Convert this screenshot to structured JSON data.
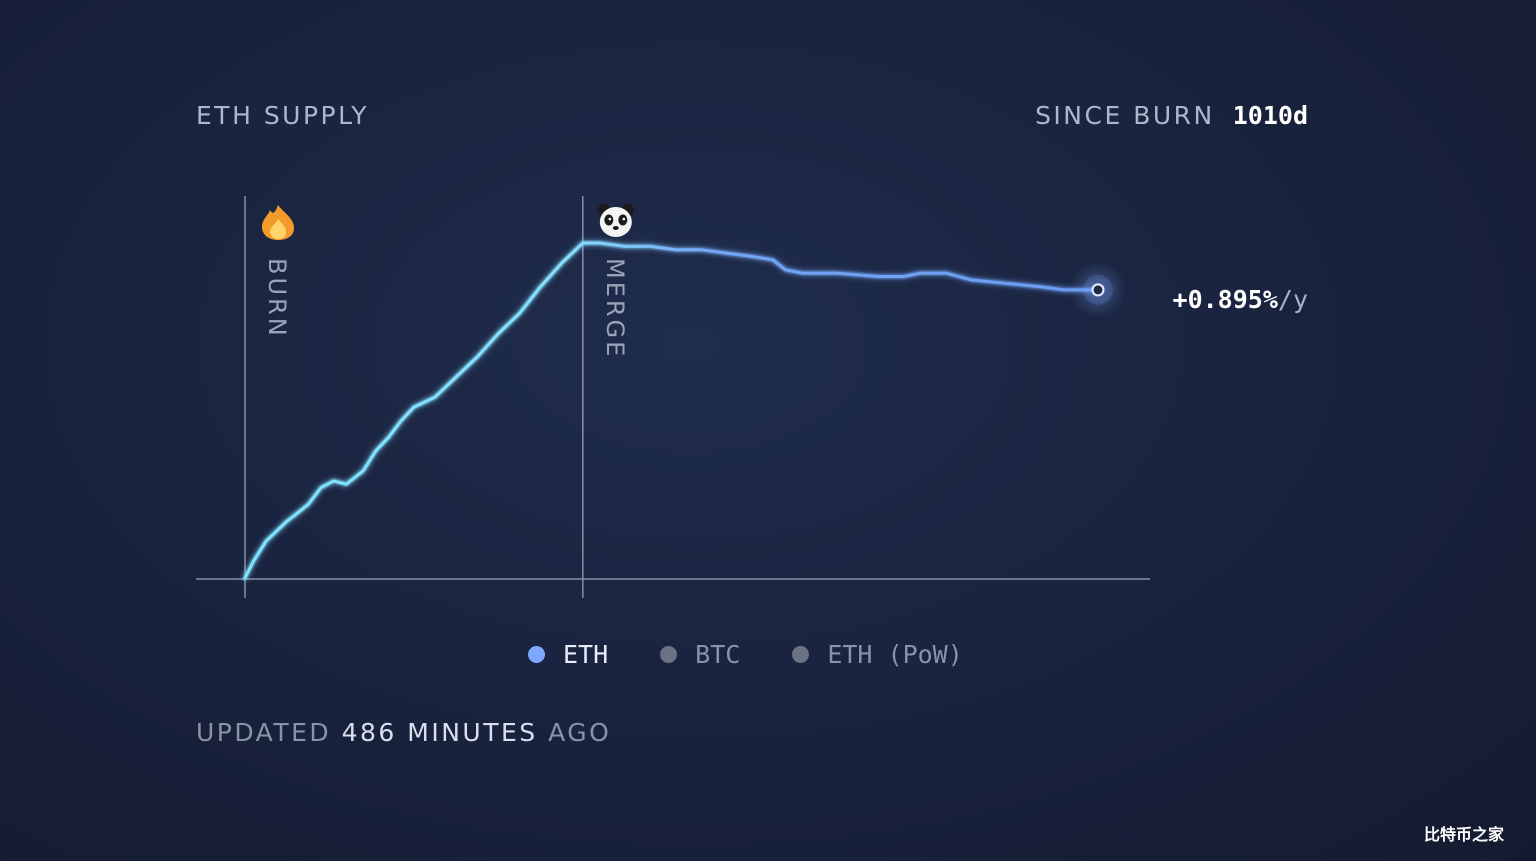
{
  "header": {
    "title": "ETH SUPPLY",
    "since_burn_label": "SINCE BURN",
    "since_burn_value": "1010d"
  },
  "chart_data": {
    "type": "line",
    "title": "ETH SUPPLY",
    "xlabel": "",
    "ylabel": "",
    "grid": false,
    "markers": [
      {
        "label": "BURN",
        "icon": "fire-icon",
        "x": 0
      },
      {
        "label": "MERGE",
        "icon": "panda-icon",
        "x": 400
      }
    ],
    "series": [
      {
        "name": "ETH",
        "color": "#7ea8ff",
        "x": [
          0,
          10,
          25,
          50,
          60,
          75,
          90,
          105,
          120,
          140,
          155,
          170,
          185,
          200,
          225,
          250,
          275,
          300,
          325,
          350,
          375,
          400,
          420,
          450,
          480,
          510,
          540,
          570,
          600,
          625,
          640,
          660,
          700,
          750,
          780,
          800,
          830,
          860,
          900,
          940,
          970,
          1010
        ],
        "values": [
          0,
          0.05,
          0.11,
          0.17,
          0.19,
          0.22,
          0.27,
          0.29,
          0.28,
          0.32,
          0.38,
          0.42,
          0.47,
          0.51,
          0.54,
          0.6,
          0.66,
          0.73,
          0.79,
          0.87,
          0.94,
          1.0,
          1.0,
          0.99,
          0.99,
          0.98,
          0.98,
          0.97,
          0.96,
          0.95,
          0.92,
          0.91,
          0.91,
          0.9,
          0.9,
          0.91,
          0.91,
          0.89,
          0.88,
          0.87,
          0.86,
          0.86
        ]
      }
    ],
    "end_label": "+0.895%/y",
    "legend": [
      {
        "name": "ETH",
        "color": "#7ea8ff",
        "active": true
      },
      {
        "name": "BTC",
        "color": "#6b7285",
        "active": false
      },
      {
        "name": "ETH (PoW)",
        "color": "#6b7285",
        "active": false
      }
    ]
  },
  "footer": {
    "prefix": "UPDATED",
    "value": "486 MINUTES",
    "suffix": "AGO"
  },
  "watermark": "比特币之家"
}
